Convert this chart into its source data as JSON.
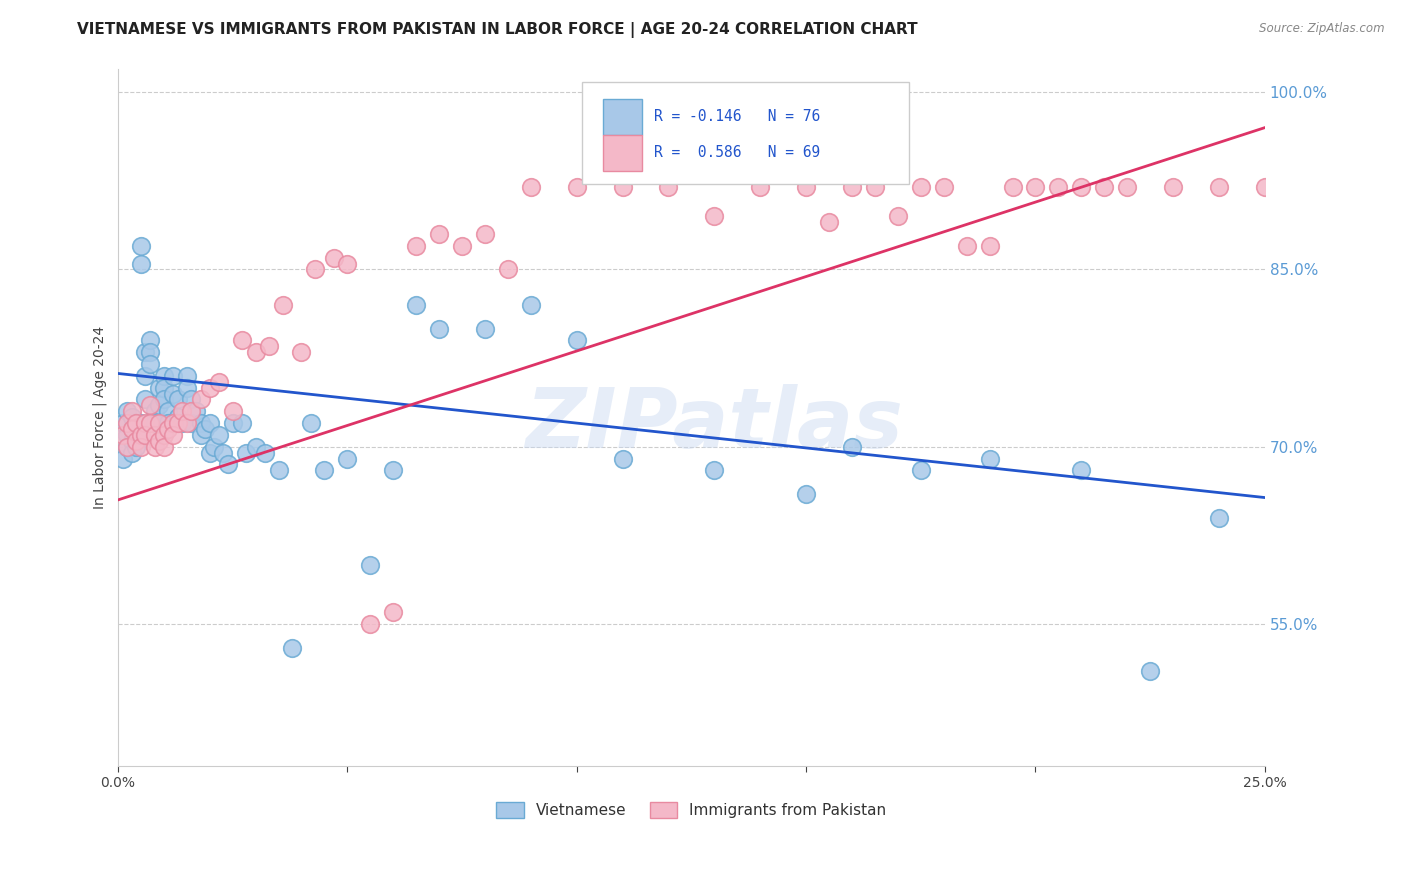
{
  "title": "VIETNAMESE VS IMMIGRANTS FROM PAKISTAN IN LABOR FORCE | AGE 20-24 CORRELATION CHART",
  "source": "Source: ZipAtlas.com",
  "ylabel": "In Labor Force | Age 20-24",
  "xlim": [
    0.0,
    0.25
  ],
  "ylim": [
    0.43,
    1.02
  ],
  "xticks": [
    0.0,
    0.05,
    0.1,
    0.15,
    0.2,
    0.25
  ],
  "xticklabels": [
    "0.0%",
    "",
    "",
    "",
    "",
    "25.0%"
  ],
  "yticks_right": [
    0.55,
    0.7,
    0.85,
    1.0
  ],
  "yticklabels_right": [
    "55.0%",
    "70.0%",
    "85.0%",
    "100.0%"
  ],
  "blue_color": "#A8C8E8",
  "blue_edge_color": "#6AAAD4",
  "pink_color": "#F4B8C8",
  "pink_edge_color": "#E88AA0",
  "blue_line_color": "#2255CC",
  "pink_line_color": "#DD3366",
  "legend_R_blue": "R = -0.146",
  "legend_N_blue": "N = 76",
  "legend_R_pink": "R =  0.586",
  "legend_N_pink": "N = 69",
  "watermark": "ZIPatlas",
  "title_fontsize": 11,
  "axis_label_fontsize": 10,
  "tick_fontsize": 10,
  "blue_scatter_x": [
    0.001,
    0.001,
    0.002,
    0.002,
    0.002,
    0.003,
    0.003,
    0.003,
    0.003,
    0.004,
    0.004,
    0.004,
    0.005,
    0.005,
    0.005,
    0.005,
    0.006,
    0.006,
    0.006,
    0.007,
    0.007,
    0.007,
    0.008,
    0.008,
    0.009,
    0.009,
    0.01,
    0.01,
    0.01,
    0.011,
    0.011,
    0.012,
    0.012,
    0.013,
    0.013,
    0.014,
    0.015,
    0.015,
    0.016,
    0.016,
    0.017,
    0.018,
    0.018,
    0.019,
    0.02,
    0.02,
    0.021,
    0.022,
    0.023,
    0.024,
    0.025,
    0.027,
    0.028,
    0.03,
    0.032,
    0.035,
    0.038,
    0.042,
    0.045,
    0.05,
    0.055,
    0.06,
    0.065,
    0.07,
    0.08,
    0.09,
    0.1,
    0.11,
    0.13,
    0.15,
    0.16,
    0.175,
    0.19,
    0.21,
    0.225,
    0.24
  ],
  "blue_scatter_y": [
    0.72,
    0.69,
    0.73,
    0.71,
    0.7,
    0.725,
    0.715,
    0.705,
    0.695,
    0.72,
    0.71,
    0.7,
    0.87,
    0.855,
    0.72,
    0.71,
    0.78,
    0.76,
    0.74,
    0.79,
    0.78,
    0.77,
    0.73,
    0.72,
    0.75,
    0.735,
    0.76,
    0.75,
    0.74,
    0.73,
    0.72,
    0.76,
    0.745,
    0.74,
    0.725,
    0.72,
    0.76,
    0.75,
    0.74,
    0.72,
    0.73,
    0.72,
    0.71,
    0.715,
    0.695,
    0.72,
    0.7,
    0.71,
    0.695,
    0.685,
    0.72,
    0.72,
    0.695,
    0.7,
    0.695,
    0.68,
    0.53,
    0.72,
    0.68,
    0.69,
    0.6,
    0.68,
    0.82,
    0.8,
    0.8,
    0.82,
    0.79,
    0.69,
    0.68,
    0.66,
    0.7,
    0.68,
    0.69,
    0.68,
    0.51,
    0.64
  ],
  "pink_scatter_x": [
    0.001,
    0.002,
    0.002,
    0.003,
    0.003,
    0.004,
    0.004,
    0.005,
    0.005,
    0.006,
    0.006,
    0.007,
    0.007,
    0.008,
    0.008,
    0.009,
    0.009,
    0.01,
    0.01,
    0.011,
    0.012,
    0.012,
    0.013,
    0.014,
    0.015,
    0.016,
    0.018,
    0.02,
    0.022,
    0.025,
    0.027,
    0.03,
    0.033,
    0.036,
    0.04,
    0.043,
    0.047,
    0.05,
    0.055,
    0.06,
    0.065,
    0.07,
    0.075,
    0.08,
    0.085,
    0.09,
    0.1,
    0.11,
    0.12,
    0.13,
    0.14,
    0.15,
    0.155,
    0.16,
    0.165,
    0.17,
    0.175,
    0.18,
    0.185,
    0.19,
    0.195,
    0.2,
    0.205,
    0.21,
    0.215,
    0.22,
    0.23,
    0.24,
    0.25
  ],
  "pink_scatter_y": [
    0.71,
    0.72,
    0.7,
    0.73,
    0.715,
    0.705,
    0.72,
    0.71,
    0.7,
    0.72,
    0.71,
    0.735,
    0.72,
    0.71,
    0.7,
    0.72,
    0.705,
    0.71,
    0.7,
    0.715,
    0.72,
    0.71,
    0.72,
    0.73,
    0.72,
    0.73,
    0.74,
    0.75,
    0.755,
    0.73,
    0.79,
    0.78,
    0.785,
    0.82,
    0.78,
    0.85,
    0.86,
    0.855,
    0.55,
    0.56,
    0.87,
    0.88,
    0.87,
    0.88,
    0.85,
    0.92,
    0.92,
    0.92,
    0.92,
    0.895,
    0.92,
    0.92,
    0.89,
    0.92,
    0.92,
    0.895,
    0.92,
    0.92,
    0.87,
    0.87,
    0.92,
    0.92,
    0.92,
    0.92,
    0.92,
    0.92,
    0.92,
    0.92,
    0.92
  ],
  "blue_trend_x": [
    0.0,
    0.25
  ],
  "blue_trend_y": [
    0.762,
    0.657
  ],
  "pink_trend_x": [
    0.0,
    0.25
  ],
  "pink_trend_y": [
    0.655,
    0.97
  ]
}
